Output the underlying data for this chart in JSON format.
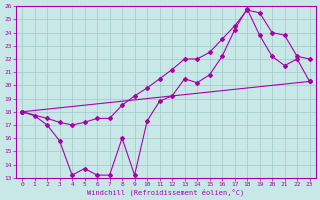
{
  "xlabel": "Windchill (Refroidissement éolien,°C)",
  "background_color": "#c8e8e8",
  "grid_color": "#a0c8c8",
  "line_color": "#aa00aa",
  "xlim": [
    -0.5,
    23.5
  ],
  "ylim": [
    13,
    26
  ],
  "xticks": [
    0,
    1,
    2,
    3,
    4,
    5,
    6,
    7,
    8,
    9,
    10,
    11,
    12,
    13,
    14,
    15,
    16,
    17,
    18,
    19,
    20,
    21,
    22,
    23
  ],
  "yticks": [
    13,
    14,
    15,
    16,
    17,
    18,
    19,
    20,
    21,
    22,
    23,
    24,
    25,
    26
  ],
  "line1_x": [
    0,
    1,
    2,
    3,
    4,
    5,
    6,
    7,
    8,
    9,
    10,
    11,
    12,
    13,
    14,
    15,
    16,
    17,
    18,
    19,
    20,
    21,
    22,
    23
  ],
  "line1_y": [
    18,
    17.7,
    17.0,
    15.8,
    13.2,
    13.7,
    13.2,
    13.2,
    16.0,
    13.2,
    17.3,
    18.8,
    19.2,
    20.5,
    20.2,
    20.8,
    22.2,
    24.2,
    25.8,
    23.8,
    22.2,
    21.5,
    22.0,
    20.3
  ],
  "line2_x": [
    0,
    2,
    3,
    4,
    5,
    6,
    7,
    8,
    9,
    10,
    11,
    12,
    13,
    14,
    15,
    16,
    17,
    18,
    19,
    20,
    21,
    22,
    23
  ],
  "line2_y": [
    18,
    17.5,
    17.2,
    17.0,
    17.2,
    17.5,
    17.5,
    18.5,
    19.2,
    19.8,
    20.5,
    21.2,
    22.0,
    22.0,
    22.5,
    23.5,
    24.5,
    25.7,
    25.5,
    24.0,
    23.8,
    22.2,
    22.0
  ],
  "line3_x": [
    0,
    23
  ],
  "line3_y": [
    18,
    20.3
  ]
}
